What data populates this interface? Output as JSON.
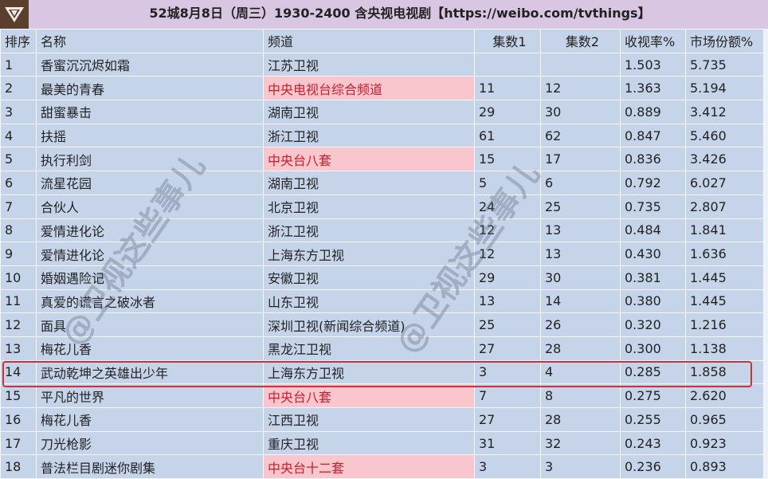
{
  "title": "52城8月8日（周三）1930-2400 含央视电视剧【https://weibo.com/tvthings】",
  "watermark": "@卫视这些事儿",
  "colors": {
    "cell": "#c6d4ea",
    "cctv_cell": "#f8c6cc",
    "cctv_text": "#cc1d2a",
    "highlight_border": "#c8323a",
    "title_bar": "#d8c6e2"
  },
  "headers": [
    "排序",
    "名称",
    "频道",
    "集数1",
    "集数2",
    "收视率%",
    "市场份额%"
  ],
  "rows": [
    {
      "rank": "1",
      "name": "香蜜沉沉烬如霜",
      "channel": "江苏卫视",
      "ep1": "",
      "ep2": "",
      "rating": "1.503",
      "share": "5.735",
      "cctv": false
    },
    {
      "rank": "2",
      "name": "最美的青春",
      "channel": "中央电视台综合频道",
      "ep1": "11",
      "ep2": "12",
      "rating": "1.363",
      "share": "5.194",
      "cctv": true
    },
    {
      "rank": "3",
      "name": "甜蜜暴击",
      "channel": "湖南卫视",
      "ep1": "29",
      "ep2": "30",
      "rating": "0.889",
      "share": "3.412",
      "cctv": false
    },
    {
      "rank": "4",
      "name": "扶摇",
      "channel": "浙江卫视",
      "ep1": "61",
      "ep2": "62",
      "rating": "0.847",
      "share": "5.460",
      "cctv": false
    },
    {
      "rank": "5",
      "name": "执行利剑",
      "channel": "中央台八套",
      "ep1": "15",
      "ep2": "17",
      "rating": "0.836",
      "share": "3.426",
      "cctv": true
    },
    {
      "rank": "6",
      "name": "流星花园",
      "channel": "湖南卫视",
      "ep1": "5",
      "ep2": "6",
      "rating": "0.792",
      "share": "6.027",
      "cctv": false
    },
    {
      "rank": "7",
      "name": "合伙人",
      "channel": "北京卫视",
      "ep1": "24",
      "ep2": "25",
      "rating": "0.735",
      "share": "2.807",
      "cctv": false
    },
    {
      "rank": "8",
      "name": "爱情进化论",
      "channel": "浙江卫视",
      "ep1": "12",
      "ep2": "13",
      "rating": "0.484",
      "share": "1.841",
      "cctv": false
    },
    {
      "rank": "9",
      "name": "爱情进化论",
      "channel": "上海东方卫视",
      "ep1": "12",
      "ep2": "13",
      "rating": "0.430",
      "share": "1.636",
      "cctv": false
    },
    {
      "rank": "10",
      "name": "婚姻遇险记",
      "channel": "安徽卫视",
      "ep1": "29",
      "ep2": "30",
      "rating": "0.381",
      "share": "1.445",
      "cctv": false
    },
    {
      "rank": "11",
      "name": "真爱的谎言之破冰者",
      "channel": "山东卫视",
      "ep1": "13",
      "ep2": "14",
      "rating": "0.380",
      "share": "1.445",
      "cctv": false
    },
    {
      "rank": "12",
      "name": "面具",
      "channel": "深圳卫视(新闻综合频道)",
      "ep1": "25",
      "ep2": "26",
      "rating": "0.320",
      "share": "1.216",
      "cctv": false
    },
    {
      "rank": "13",
      "name": "梅花儿香",
      "channel": "黑龙江卫视",
      "ep1": "27",
      "ep2": "28",
      "rating": "0.300",
      "share": "1.138",
      "cctv": false
    },
    {
      "rank": "14",
      "name": "武动乾坤之英雄出少年",
      "channel": "上海东方卫视",
      "ep1": "3",
      "ep2": "4",
      "rating": "0.285",
      "share": "1.858",
      "cctv": false,
      "highlighted": true
    },
    {
      "rank": "15",
      "name": "平凡的世界",
      "channel": "中央台八套",
      "ep1": "7",
      "ep2": "8",
      "rating": "0.275",
      "share": "2.620",
      "cctv": true
    },
    {
      "rank": "16",
      "name": "梅花儿香",
      "channel": "江西卫视",
      "ep1": "27",
      "ep2": "28",
      "rating": "0.255",
      "share": "0.965",
      "cctv": false
    },
    {
      "rank": "17",
      "name": "刀光枪影",
      "channel": "重庆卫视",
      "ep1": "31",
      "ep2": "32",
      "rating": "0.243",
      "share": "0.923",
      "cctv": false
    },
    {
      "rank": "18",
      "name": "普法栏目剧迷你剧集",
      "channel": "中央台十二套",
      "ep1": "3",
      "ep2": "3",
      "rating": "0.236",
      "share": "0.893",
      "cctv": true
    }
  ]
}
